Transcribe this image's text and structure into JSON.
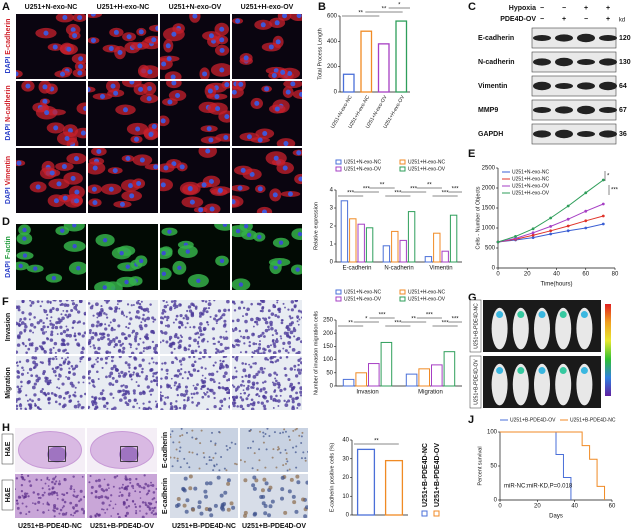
{
  "panel_letters": [
    "A",
    "B",
    "C",
    "D",
    "E",
    "F",
    "G",
    "H",
    "J"
  ],
  "panel_a": {
    "columns": [
      "U251+N-exo-NC",
      "U251+H-exo-NC",
      "U251+N-exo-OV",
      "U251+H-exo-OV"
    ],
    "rows": [
      [
        "DAPI",
        "E-cadherin"
      ],
      [
        "DAPI",
        "N-cadherin"
      ],
      [
        "DAPI",
        "Vimentin"
      ]
    ]
  },
  "panel_d": {
    "row": [
      "DAPI",
      "F-actin"
    ]
  },
  "panel_f": {
    "rows": [
      "Invasion",
      "Migration"
    ]
  },
  "panel_c": {
    "conditions": [
      {
        "label": "Hypoxia",
        "marks": [
          "−",
          "−",
          "+",
          "+"
        ]
      },
      {
        "label": "PDE4D-OV",
        "marks": [
          "−",
          "+",
          "−",
          "+"
        ]
      }
    ],
    "unit": "kd",
    "bands": [
      {
        "name": "E-cadherin",
        "kd": 120
      },
      {
        "name": "N-cadherin",
        "kd": 130
      },
      {
        "name": "Vimentin",
        "kd": 64
      },
      {
        "name": "MMP9",
        "kd": 67
      },
      {
        "name": "GAPDH",
        "kd": 36
      }
    ]
  },
  "panel_g": {
    "rows": [
      "U251+B-PDE4D-NC",
      "U251+B-PDE4D-OV"
    ]
  },
  "panel_h": {
    "rows": [
      "H&E",
      "H&E"
    ],
    "captions": [
      "U251+B-PDE4D-NC",
      "U251+B-PDE4D-OV"
    ]
  },
  "panel_i": {
    "rows": [
      "E-cadherin",
      "E-cadherin"
    ],
    "captions": [
      "U251+B-PDE4D-NC",
      "U251+B-PDE4D-OV"
    ]
  },
  "chart_data": [
    {
      "type": "bar",
      "ylabel": "Total Process Length",
      "categories": [
        "U251+N-exo-NC",
        "U251+H-exo-NC",
        "U251+N-exo-OV",
        "U251+H-exo-OV"
      ],
      "values": [
        140,
        480,
        380,
        560
      ],
      "colors": [
        "#4a6fd8",
        "#f08a24",
        "#a63fc4",
        "#2e9e5a"
      ],
      "ylim": [
        0,
        600
      ],
      "yticks": [
        0,
        200,
        400,
        600
      ],
      "annotations": [
        "**",
        "**",
        "*"
      ]
    },
    {
      "type": "bar",
      "ylabel": "Relative expression",
      "categories": [
        "E-cadherin",
        "N-cadherin",
        "Vimentin"
      ],
      "series": [
        {
          "name": "U251+N-exo-NC",
          "color": "#4a6fd8",
          "values": [
            3.4,
            0.9,
            0.3
          ]
        },
        {
          "name": "U251+H-exo-NC",
          "color": "#f08a24",
          "values": [
            2.4,
            1.7,
            1.6
          ]
        },
        {
          "name": "U251+N-exo-OV",
          "color": "#a63fc4",
          "values": [
            2.1,
            1.2,
            0.6
          ]
        },
        {
          "name": "U251+H-exo-OV",
          "color": "#2e9e5a",
          "values": [
            1.9,
            2.8,
            2.6
          ]
        }
      ],
      "ylim": [
        0,
        4
      ],
      "yticks": [
        0,
        1,
        2,
        3,
        4
      ],
      "legend": "top",
      "annotations": [
        "***",
        "***",
        "**",
        "***",
        "***",
        "**",
        "***",
        "***"
      ]
    },
    {
      "type": "line",
      "ylabel": "Cells - Number of Objects",
      "xlabel": "Time(hours)",
      "x": [
        0,
        12,
        24,
        36,
        48,
        60,
        72
      ],
      "series": [
        {
          "name": "U251+N-exo-NC",
          "color": "#3b5fd4",
          "values": [
            650,
            700,
            760,
            850,
            930,
            1000,
            1100
          ]
        },
        {
          "name": "U251+H-exo-NC",
          "color": "#e0342a",
          "values": [
            650,
            720,
            820,
            930,
            1050,
            1180,
            1300
          ]
        },
        {
          "name": "U251+N-exo-OV",
          "color": "#a63fc4",
          "values": [
            650,
            740,
            880,
            1040,
            1220,
            1420,
            1600
          ]
        },
        {
          "name": "U251+H-exo-OV",
          "color": "#2e9e5a",
          "values": [
            650,
            790,
            980,
            1250,
            1550,
            1880,
            2200
          ]
        }
      ],
      "xlim": [
        0,
        80
      ],
      "xticks": [
        0,
        20,
        40,
        60,
        80
      ],
      "ylim": [
        0,
        2500
      ],
      "yticks": [
        0,
        500,
        1000,
        1500,
        2000,
        2500
      ],
      "legend": "upper left",
      "annotations": [
        "*",
        "***"
      ]
    },
    {
      "type": "bar",
      "ylabel": "Number of invasion migration cells",
      "categories": [
        "Invasion",
        "Migration"
      ],
      "series": [
        {
          "name": "U251+N-exo-NC",
          "color": "#4a6fd8",
          "values": [
            25,
            45
          ]
        },
        {
          "name": "U251+H-exo-NC",
          "color": "#f08a24",
          "values": [
            50,
            65
          ]
        },
        {
          "name": "U251+N-exo-OV",
          "color": "#a63fc4",
          "values": [
            85,
            80
          ]
        },
        {
          "name": "U251+H-exo-OV",
          "color": "#2e9e5a",
          "values": [
            165,
            130
          ]
        }
      ],
      "ylim": [
        0,
        250
      ],
      "yticks": [
        0,
        50,
        100,
        150,
        200,
        250
      ],
      "legend": "top",
      "annotations": [
        "**",
        "*",
        "***",
        "***",
        "**",
        "***",
        "***",
        "***"
      ]
    },
    {
      "type": "bar",
      "ylabel": "E-cadherin positive cells (%)",
      "categories": [
        "U251+B-PDE4D-NC",
        "U251+B-PDE4D-OV"
      ],
      "values": [
        35,
        29
      ],
      "colors": [
        "#4a6fd8",
        "#f08a24"
      ],
      "ylim": [
        0,
        40
      ],
      "yticks": [
        0,
        10,
        20,
        30,
        40
      ],
      "legend": "right",
      "annotations": [
        "**"
      ]
    },
    {
      "type": "line",
      "ylabel": "Percent survival",
      "xlabel": "Days",
      "series": [
        {
          "name": "U251+B-PDE4D-OV",
          "color": "#4a6fd8",
          "x": [
            0,
            30,
            30,
            34,
            34,
            38,
            38
          ],
          "values": [
            100,
            100,
            67,
            67,
            33,
            33,
            0
          ]
        },
        {
          "name": "U251+B-PDE4D-NC",
          "color": "#f08a24",
          "x": [
            0,
            44,
            44,
            48,
            48,
            52,
            52,
            56,
            56
          ],
          "values": [
            100,
            100,
            80,
            80,
            60,
            60,
            20,
            20,
            0
          ]
        }
      ],
      "xlim": [
        0,
        60
      ],
      "xticks": [
        0,
        20,
        40,
        60
      ],
      "ylim": [
        0,
        100
      ],
      "yticks": [
        0,
        50,
        100
      ],
      "legend": "top",
      "annotations": [
        "miR-NC:miR-KD,P=0.018"
      ]
    }
  ]
}
